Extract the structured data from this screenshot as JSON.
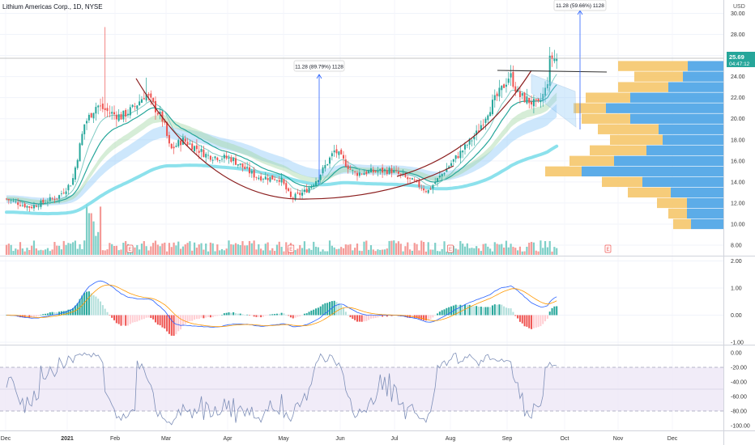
{
  "header": {
    "symbol_line": "Lithium Americas Corp., 1D, NYSE",
    "currency": "USD"
  },
  "callouts": {
    "left": "11.28 (89.79%) 1128",
    "right": "11.28 (59.66%) 1128"
  },
  "price_badge": {
    "price": "25.69",
    "countdown": "04:47:12"
  },
  "earnings_marker": "E",
  "colors": {
    "up": "#26a69a",
    "down": "#ef5350",
    "vol_up": "#7ecfc7",
    "vol_down": "#f49a97",
    "ema_fast": "#b71c1c",
    "ema_teal": "#26a69a",
    "ema_band_blue": "#90caf9",
    "ema_band_green": "#a5d6a7",
    "ema_long": "#80deea",
    "vp_up": "#f5c76b",
    "vp_down": "#4aa3e6",
    "macd_line": "#2962ff",
    "signal_line": "#ff9800",
    "hist_up_strong": "#26a69a",
    "hist_up_weak": "#b2dfdb",
    "hist_down_strong": "#ef5350",
    "hist_down_weak": "#ffcdd2",
    "willr_line": "#7e8fb8",
    "willr_band": "#ede7f6"
  },
  "axes": {
    "price_ticks": [
      "30.00",
      "28.00",
      "26.00",
      "24.00",
      "22.00",
      "20.00",
      "18.00",
      "16.00",
      "14.00",
      "12.00",
      "10.00",
      "8.00"
    ],
    "macd_ticks": [
      "2.00",
      "1.00",
      "0.00",
      "-1.00"
    ],
    "willr_ticks": [
      "0.00",
      "-20.00",
      "-40.00",
      "-60.00",
      "-80.00",
      "-100.00"
    ],
    "time_labels": [
      "Dec",
      "2021",
      "Feb",
      "Mar",
      "Apr",
      "May",
      "Jun",
      "Jul",
      "Aug",
      "Sep",
      "Oct",
      "Nov",
      "Dec"
    ]
  },
  "chart_data": {
    "type": "candlestick",
    "title": "Lithium Americas Corp., 1D, NYSE",
    "price_range": [
      7,
      31
    ],
    "last_price": 25.69,
    "callouts": [
      {
        "date": "2021-05-20",
        "label": "11.28 (89.79%) 1128"
      },
      {
        "date": "2021-10-08",
        "label": "11.28 (59.66%) 1128"
      }
    ],
    "earnings_dates": [
      "2021-02-10",
      "2021-05-13",
      "2021-08-12",
      "2021-11-10"
    ],
    "ohlc_anchors": [
      {
        "date": "2020-12-01",
        "close": 12.4
      },
      {
        "date": "2020-12-15",
        "close": 11.6
      },
      {
        "date": "2020-12-31",
        "close": 12.6
      },
      {
        "date": "2021-01-08",
        "close": 14.0
      },
      {
        "date": "2021-01-15",
        "close": 19.5
      },
      {
        "date": "2021-01-22",
        "close": 21.3
      },
      {
        "date": "2021-01-29",
        "close": 20.6
      },
      {
        "date": "2021-02-05",
        "close": 20.2
      },
      {
        "date": "2021-02-12",
        "close": 21.0
      },
      {
        "date": "2021-02-19",
        "close": 22.4
      },
      {
        "date": "2021-03-01",
        "close": 19.8
      },
      {
        "date": "2021-03-05",
        "close": 17.0
      },
      {
        "date": "2021-03-12",
        "close": 18.0
      },
      {
        "date": "2021-03-19",
        "close": 17.3
      },
      {
        "date": "2021-03-26",
        "close": 16.5
      },
      {
        "date": "2021-04-09",
        "close": 16.2
      },
      {
        "date": "2021-04-23",
        "close": 14.5
      },
      {
        "date": "2021-05-07",
        "close": 14.3
      },
      {
        "date": "2021-05-13",
        "close": 12.4
      },
      {
        "date": "2021-05-21",
        "close": 13.1
      },
      {
        "date": "2021-05-28",
        "close": 14.3
      },
      {
        "date": "2021-06-07",
        "close": 17.0
      },
      {
        "date": "2021-06-18",
        "close": 14.8
      },
      {
        "date": "2021-06-30",
        "close": 15.0
      },
      {
        "date": "2021-07-09",
        "close": 15.1
      },
      {
        "date": "2021-07-23",
        "close": 13.9
      },
      {
        "date": "2021-07-30",
        "close": 13.1
      },
      {
        "date": "2021-08-06",
        "close": 14.5
      },
      {
        "date": "2021-08-13",
        "close": 15.9
      },
      {
        "date": "2021-08-20",
        "close": 17.2
      },
      {
        "date": "2021-08-27",
        "close": 18.6
      },
      {
        "date": "2021-09-03",
        "close": 20.9
      },
      {
        "date": "2021-09-10",
        "close": 22.7
      },
      {
        "date": "2021-09-15",
        "close": 24.2
      },
      {
        "date": "2021-09-20",
        "close": 22.2
      },
      {
        "date": "2021-09-27",
        "close": 21.6
      },
      {
        "date": "2021-10-01",
        "close": 21.2
      },
      {
        "date": "2021-10-06",
        "close": 23.0
      },
      {
        "date": "2021-10-08",
        "close": 25.8
      },
      {
        "date": "2021-10-12",
        "close": 25.69
      }
    ],
    "volume_profile": [
      {
        "price": 25,
        "up": 130,
        "down": 44
      },
      {
        "price": 24,
        "up": 110,
        "down": 50
      },
      {
        "price": 23,
        "up": 130,
        "down": 68
      },
      {
        "price": 22,
        "up": 170,
        "down": 115
      },
      {
        "price": 21,
        "up": 185,
        "down": 145
      },
      {
        "price": 20,
        "up": 175,
        "down": 115
      },
      {
        "price": 19,
        "up": 155,
        "down": 80
      },
      {
        "price": 18,
        "up": 140,
        "down": 75
      },
      {
        "price": 17,
        "up": 165,
        "down": 95
      },
      {
        "price": 16,
        "up": 190,
        "down": 135
      },
      {
        "price": 15,
        "up": 220,
        "down": 175
      },
      {
        "price": 14,
        "up": 150,
        "down": 100
      },
      {
        "price": 13,
        "up": 118,
        "down": 65
      },
      {
        "price": 12,
        "up": 82,
        "down": 45
      },
      {
        "price": 11,
        "up": 68,
        "down": 45
      },
      {
        "price": 10,
        "up": 62,
        "down": 40
      }
    ],
    "macd_range": [
      -1,
      2.1
    ],
    "williams_r_range": [
      -100,
      0
    ],
    "williams_r_band": [
      -80,
      -20
    ]
  }
}
